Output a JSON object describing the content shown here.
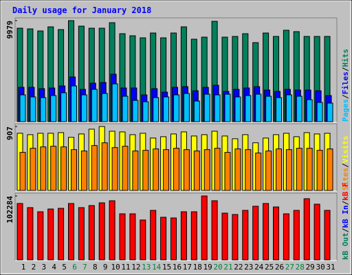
{
  "chart_data": [
    {
      "type": "bar",
      "title": "Daily usage for January 2018",
      "ylim": [
        0,
        9979
      ],
      "yticks": [
        9979
      ],
      "separator": "/",
      "series": [
        {
          "name": "Hits",
          "color": "#00805c",
          "values": [
            9232,
            9164,
            8961,
            9368,
            9096,
            9979,
            9436,
            9232,
            9232,
            9775,
            8689,
            8486,
            8282,
            8757,
            8282,
            8757,
            9368,
            8146,
            8350,
            9911,
            8350,
            8418,
            8689,
            7807,
            8757,
            8418,
            9029,
            8893,
            8418,
            8418,
            8418
          ]
        },
        {
          "name": "Files",
          "color": "#0000ff",
          "values": [
            3394,
            3394,
            3259,
            3327,
            3530,
            4413,
            3191,
            3802,
            3870,
            4685,
            3327,
            3327,
            2648,
            3259,
            2920,
            3394,
            3462,
            3055,
            3394,
            3599,
            2987,
            3191,
            3327,
            3462,
            3123,
            2987,
            3191,
            3123,
            3123,
            3055,
            2580
          ]
        },
        {
          "name": "Pages",
          "color": "#00c0ff",
          "values": [
            2648,
            2444,
            2377,
            2580,
            2852,
            3530,
            2648,
            3191,
            2784,
            3734,
            2512,
            2105,
            1969,
            2377,
            2444,
            2648,
            2784,
            2037,
            2716,
            2648,
            2716,
            2444,
            2580,
            2716,
            2512,
            2377,
            2648,
            2512,
            2173,
            1901,
            1833
          ]
        }
      ]
    },
    {
      "type": "bar",
      "ylim": [
        0,
        907
      ],
      "yticks": [
        907
      ],
      "separator": "/",
      "series": [
        {
          "name": "Visits",
          "color": "#ffff00",
          "values": [
            811,
            791,
            811,
            811,
            820,
            753,
            801,
            869,
            907,
            840,
            830,
            791,
            811,
            743,
            762,
            801,
            830,
            772,
            791,
            840,
            772,
            733,
            791,
            676,
            743,
            791,
            811,
            762,
            820,
            801,
            811
          ]
        },
        {
          "name": "Sites",
          "color": "#ff8000",
          "values": [
            540,
            598,
            618,
            627,
            618,
            579,
            560,
            637,
            676,
            608,
            627,
            560,
            569,
            589,
            579,
            598,
            579,
            560,
            579,
            598,
            540,
            589,
            579,
            531,
            560,
            589,
            579,
            598,
            598,
            569,
            589
          ]
        }
      ]
    },
    {
      "type": "bar",
      "ylim": [
        0,
        102284
      ],
      "yticks": [
        102284
      ],
      "separator": "/",
      "categories": [
        "1",
        "2",
        "3",
        "4",
        "5",
        "6",
        "7",
        "8",
        "9",
        "10",
        "11",
        "12",
        "13",
        "14",
        "15",
        "16",
        "17",
        "18",
        "19",
        "20",
        "21",
        "22",
        "23",
        "24",
        "25",
        "26",
        "27",
        "28",
        "29",
        "30",
        "31"
      ],
      "highlight_indices": [
        5,
        6,
        12,
        13,
        19,
        20,
        26,
        27
      ],
      "highlight_color": "#008040",
      "label_color": "#000000",
      "series": [
        {
          "name": "kB F",
          "color": "#ff0000",
          "values": [
            90200,
            83600,
            77000,
            81400,
            82500,
            90200,
            83600,
            86900,
            91300,
            94600,
            73700,
            73700,
            63800,
            79200,
            68200,
            67100,
            77000,
            77000,
            102284,
            94600,
            74800,
            72600,
            79200,
            85800,
            90200,
            84700,
            73700,
            79200,
            97900,
            89100,
            79200
          ]
        },
        {
          "name": "kB In",
          "color": "#0000ff",
          "values": [
            0,
            0,
            0,
            0,
            0,
            0,
            0,
            0,
            0,
            0,
            0,
            0,
            0,
            0,
            0,
            0,
            0,
            0,
            0,
            0,
            0,
            0,
            0,
            0,
            0,
            0,
            0,
            0,
            0,
            0,
            0
          ]
        },
        {
          "name": "kB Out",
          "color": "#00805c",
          "values": [
            0,
            0,
            0,
            0,
            0,
            0,
            0,
            0,
            0,
            0,
            0,
            0,
            0,
            0,
            0,
            0,
            0,
            0,
            0,
            0,
            0,
            0,
            0,
            0,
            0,
            0,
            0,
            0,
            0,
            0,
            0
          ]
        }
      ]
    }
  ]
}
